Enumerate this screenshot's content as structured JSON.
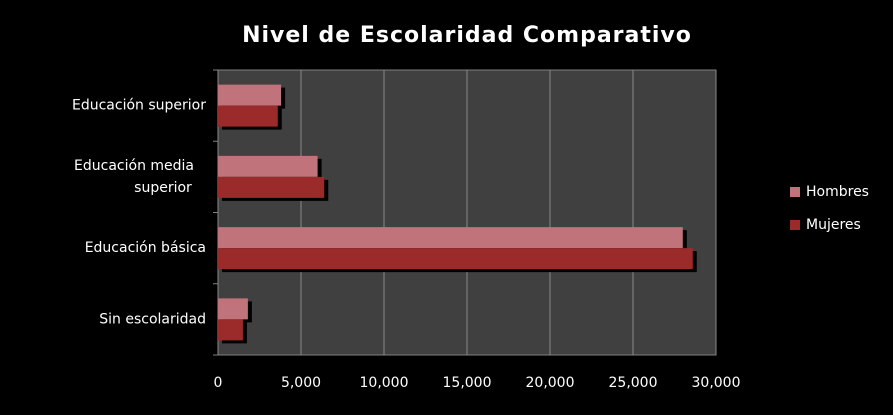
{
  "chart_data": {
    "type": "bar",
    "orientation": "horizontal",
    "title": "Nivel de Escolaridad Comparativo",
    "categories": [
      "Educación superior",
      "Educación media superior",
      "Educación básica",
      "Sin escolaridad"
    ],
    "series": [
      {
        "name": "Hombres",
        "color": "#c0737a",
        "values": [
          3800,
          6000,
          28000,
          1800
        ]
      },
      {
        "name": "Mujeres",
        "color": "#9b2b2b",
        "values": [
          3600,
          6400,
          28600,
          1500
        ]
      }
    ],
    "xlim": [
      0,
      30000
    ],
    "xticks": [
      0,
      {
        "value": 5000,
        "label": "5,000"
      },
      {
        "value": 10000,
        "label": "10,000"
      },
      {
        "value": 15000,
        "label": "15,000"
      },
      {
        "value": 20000,
        "label": "20,000"
      },
      {
        "value": 25000,
        "label": "25,000"
      },
      {
        "value": 30000,
        "label": "30,000"
      }
    ],
    "grid": true,
    "legend": "right"
  }
}
